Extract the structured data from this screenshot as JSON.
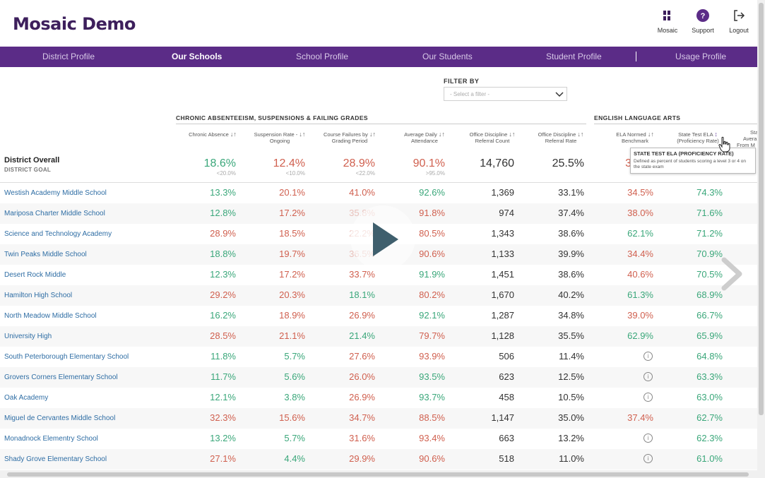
{
  "app": {
    "title": "Mosaic Demo"
  },
  "header_buttons": [
    {
      "label": "Mosaic",
      "icon": "mosaic-icon"
    },
    {
      "label": "Support",
      "icon": "question-icon"
    },
    {
      "label": "Logout",
      "icon": "logout-icon"
    }
  ],
  "nav": [
    {
      "label": "District Profile",
      "active": false
    },
    {
      "label": "Our Schools",
      "active": true
    },
    {
      "label": "School Profile",
      "active": false
    },
    {
      "label": "Our Students",
      "active": false
    },
    {
      "label": "Student Profile",
      "active": false
    },
    {
      "label": "Usage Profile",
      "active": false
    }
  ],
  "filter": {
    "label": "FILTER BY",
    "placeholder": "- Select a filter -"
  },
  "groups": [
    {
      "label": "CHRONIC ABSENTEEISM, SUSPENSIONS & FAILING GRADES"
    },
    {
      "label": "ENGLISH LANGUAGE ARTS"
    }
  ],
  "columns": [
    {
      "line1": "Chronic Absence",
      "line2": ""
    },
    {
      "line1": "Suspension Rate -",
      "line2": "Ongoing"
    },
    {
      "line1": "Course Failures by",
      "line2": "Grading Period"
    },
    {
      "line1": "Average Daily",
      "line2": "Attendance"
    },
    {
      "line1": "Office Discipline",
      "line2": "Referral Count"
    },
    {
      "line1": "Office Discipline",
      "line2": "Referral Rate"
    },
    {
      "line1": "ELA Normed",
      "line2": "Benchmark"
    },
    {
      "line1": "State Test ELA",
      "line2": "(Proficiency Rate)"
    },
    {
      "line1": "Sta",
      "line2": "Avera",
      "line3": "From M"
    }
  ],
  "district": {
    "name": "District Overall",
    "goal_label": "DISTRICT GOAL",
    "values": [
      "18.6%",
      "12.4%",
      "28.9%",
      "90.1%",
      "14,760",
      "25.5%",
      "3",
      ""
    ],
    "goals": [
      "<20.0%",
      "<10.0%",
      "<22.0%",
      ">95.0%",
      "",
      "",
      "",
      ""
    ]
  },
  "tooltip": {
    "title": "STATE TEST ELA (PROFICIENCY RATE)",
    "body": "Defined as percent of students scoring a level 3 or 4 on the state exam"
  },
  "rows": [
    {
      "school": "Westish Academy Middle School",
      "values": [
        "13.3%",
        "20.1%",
        "41.0%",
        "92.6%",
        "1,369",
        "33.1%",
        "34.5%",
        "74.3%"
      ],
      "colors": [
        "g",
        "r",
        "r",
        "g",
        "d",
        "d",
        "r",
        "g"
      ]
    },
    {
      "school": "Mariposa Charter Middle School",
      "values": [
        "12.8%",
        "17.2%",
        "35.8%",
        "91.8%",
        "974",
        "37.4%",
        "38.0%",
        "71.6%"
      ],
      "colors": [
        "g",
        "r",
        "r",
        "r",
        "d",
        "d",
        "r",
        "g"
      ]
    },
    {
      "school": "Science and Technology Academy",
      "values": [
        "28.9%",
        "18.5%",
        "22.2%",
        "80.5%",
        "1,343",
        "38.6%",
        "62.1%",
        "71.2%"
      ],
      "colors": [
        "r",
        "r",
        "r",
        "r",
        "d",
        "d",
        "g",
        "g"
      ]
    },
    {
      "school": "Twin Peaks Middle School",
      "values": [
        "18.8%",
        "19.7%",
        "36.5%",
        "90.6%",
        "1,133",
        "39.9%",
        "34.4%",
        "70.9%"
      ],
      "colors": [
        "g",
        "r",
        "r",
        "r",
        "d",
        "d",
        "r",
        "g"
      ]
    },
    {
      "school": "Desert Rock Middle",
      "values": [
        "12.3%",
        "17.2%",
        "33.7%",
        "91.9%",
        "1,451",
        "38.6%",
        "40.6%",
        "70.5%"
      ],
      "colors": [
        "g",
        "r",
        "r",
        "g",
        "d",
        "d",
        "r",
        "g"
      ]
    },
    {
      "school": "Hamilton High School",
      "values": [
        "29.2%",
        "20.3%",
        "18.1%",
        "80.2%",
        "1,670",
        "40.2%",
        "61.3%",
        "68.9%"
      ],
      "colors": [
        "r",
        "r",
        "g",
        "r",
        "d",
        "d",
        "g",
        "g"
      ]
    },
    {
      "school": "North Meadow Middle School",
      "values": [
        "16.2%",
        "18.9%",
        "26.9%",
        "92.1%",
        "1,287",
        "34.8%",
        "39.0%",
        "66.7%"
      ],
      "colors": [
        "g",
        "r",
        "r",
        "g",
        "d",
        "d",
        "r",
        "g"
      ]
    },
    {
      "school": "University High",
      "values": [
        "28.5%",
        "21.1%",
        "21.4%",
        "79.7%",
        "1,128",
        "35.5%",
        "62.9%",
        "65.9%"
      ],
      "colors": [
        "r",
        "r",
        "g",
        "r",
        "d",
        "d",
        "g",
        "g"
      ]
    },
    {
      "school": "South Peterborough Elementary School",
      "values": [
        "11.8%",
        "5.7%",
        "27.6%",
        "93.9%",
        "506",
        "11.4%",
        "ⓘ",
        "64.8%"
      ],
      "colors": [
        "g",
        "g",
        "r",
        "r",
        "d",
        "d",
        "i",
        "g"
      ]
    },
    {
      "school": "Grovers Corners Elementary School",
      "values": [
        "11.7%",
        "5.6%",
        "26.0%",
        "93.5%",
        "623",
        "12.5%",
        "ⓘ",
        "63.3%"
      ],
      "colors": [
        "g",
        "g",
        "r",
        "g",
        "d",
        "d",
        "i",
        "g"
      ]
    },
    {
      "school": "Oak Academy",
      "values": [
        "12.1%",
        "3.8%",
        "26.9%",
        "93.7%",
        "458",
        "10.5%",
        "ⓘ",
        "63.0%"
      ],
      "colors": [
        "g",
        "g",
        "r",
        "g",
        "d",
        "d",
        "i",
        "g"
      ]
    },
    {
      "school": "Miguel de Cervantes Middle School",
      "values": [
        "32.3%",
        "15.6%",
        "34.7%",
        "88.5%",
        "1,147",
        "35.0%",
        "37.4%",
        "62.7%"
      ],
      "colors": [
        "r",
        "r",
        "r",
        "r",
        "d",
        "d",
        "r",
        "g"
      ]
    },
    {
      "school": "Monadnock Elementry School",
      "values": [
        "13.2%",
        "5.7%",
        "31.6%",
        "93.4%",
        "663",
        "13.2%",
        "ⓘ",
        "62.3%"
      ],
      "colors": [
        "g",
        "g",
        "r",
        "r",
        "d",
        "d",
        "i",
        "g"
      ]
    },
    {
      "school": "Shady Grove Elementary School",
      "values": [
        "27.1%",
        "4.4%",
        "29.9%",
        "90.6%",
        "518",
        "11.0%",
        "ⓘ",
        "61.0%"
      ],
      "colors": [
        "r",
        "g",
        "r",
        "r",
        "d",
        "d",
        "i",
        "g"
      ]
    }
  ]
}
